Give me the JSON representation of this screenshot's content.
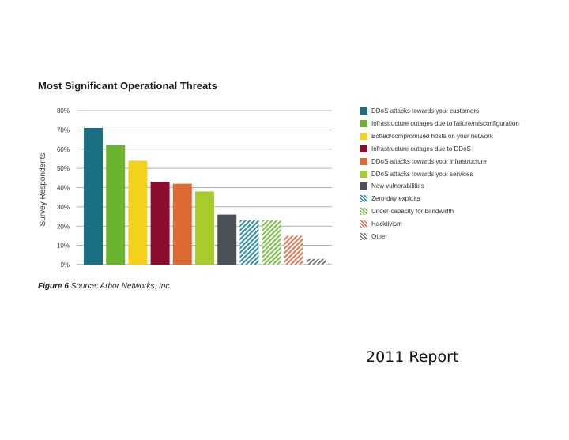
{
  "chart_data": {
    "type": "bar",
    "title": "Most Significant Operational Threats",
    "ylabel": "Survey Respondents",
    "xlabel": "",
    "ylim": [
      0,
      80
    ],
    "yticks": [
      "80%",
      "70%",
      "60%",
      "50%",
      "40%",
      "30%",
      "20%",
      "10%",
      "0%"
    ],
    "grid": true,
    "legend_position": "right",
    "categories": [
      "DDoS attacks towards your customers",
      "Infrastructure outages due to failure/misconfiguration",
      "Botted/compromised hosts on your network",
      "Infrastructure outages due to DDoS",
      "DDoS attacks towards your infrastructure",
      "DDoS attacks towards your services",
      "New vulnerabilities",
      "Zero-day exploits",
      "Under-capacity for bandwidth",
      "Hacktivism",
      "Other"
    ],
    "values": [
      71,
      62,
      54,
      43,
      42,
      38,
      26,
      23,
      23,
      15,
      3
    ],
    "colors": [
      "#1a6f82",
      "#6ab42d",
      "#f4d21c",
      "#8c0c2e",
      "#dc6a33",
      "#a8cc2a",
      "#4c5256",
      "#2e8fa8",
      "#7ec04a",
      "#e57a52",
      "#7e7e7e"
    ],
    "hatched": [
      false,
      false,
      false,
      false,
      false,
      false,
      false,
      true,
      true,
      true,
      true
    ]
  },
  "caption": {
    "figure_label": "Figure 6",
    "source_text": "Source: Arbor Networks, Inc."
  },
  "report_label": "2011 Report"
}
